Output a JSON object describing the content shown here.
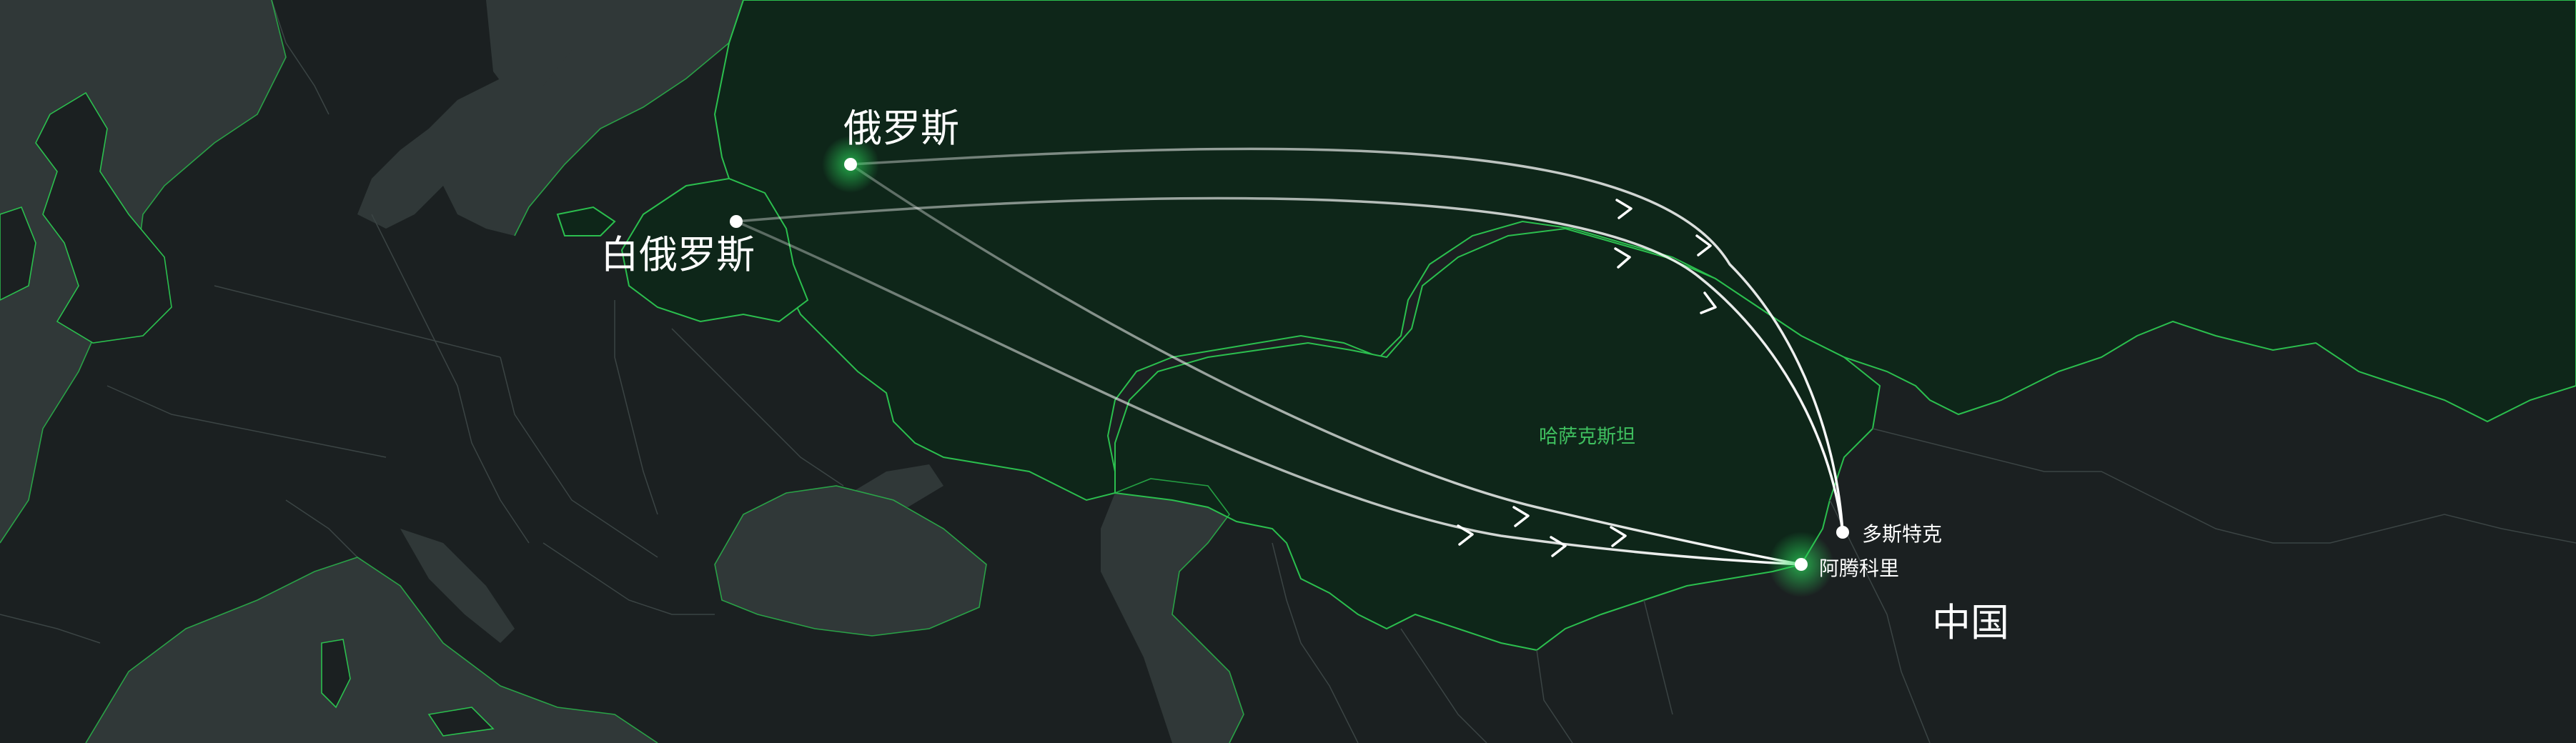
{
  "labels": {
    "russia": "俄罗斯",
    "belarus": "白俄罗斯",
    "kazakhstan": "哈萨克斯坦",
    "china": "中国",
    "dostyk": "多斯特克",
    "altynkol": "阿腾科里"
  },
  "colors": {
    "background": "#151a1a",
    "land": "#1b2021",
    "sea": "#303838",
    "highlight_land": "#0e2619",
    "border": "#2bbf4e",
    "inner_border": "#3b4444",
    "route": "#ffffff",
    "region_label": "#3fbf5f"
  },
  "highlighted_countries": [
    "俄罗斯",
    "白俄罗斯",
    "哈萨克斯坦"
  ],
  "routes": [
    {
      "from": "俄罗斯",
      "to": "多斯特克",
      "arrows": 2
    },
    {
      "from": "白俄罗斯",
      "to": "多斯特克",
      "arrows": 2
    },
    {
      "from": "俄罗斯",
      "to": "阿腾科里",
      "arrows": 2
    },
    {
      "from": "白俄罗斯",
      "to": "阿腾科里",
      "arrows": 2
    }
  ],
  "icons": {
    "route_arrow": "chevron-arrow-icon",
    "city_marker": "dot-marker-icon"
  }
}
